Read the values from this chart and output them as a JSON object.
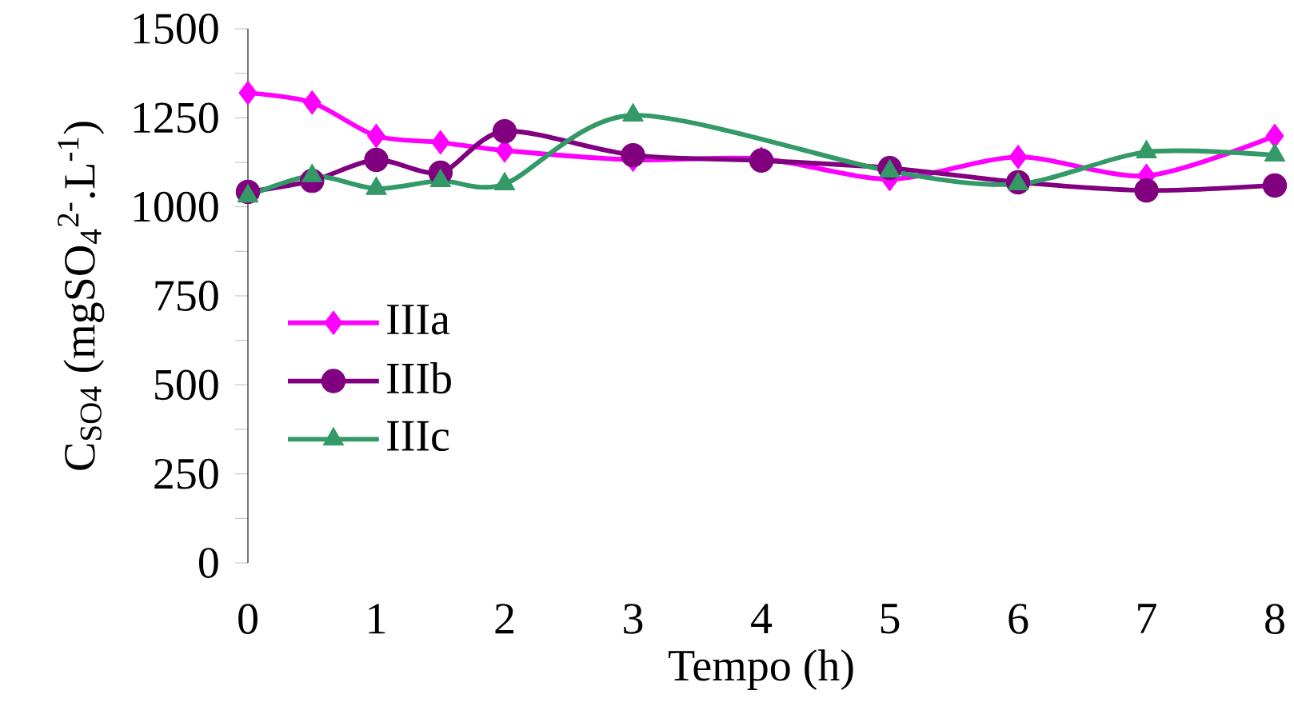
{
  "chart_data": {
    "type": "line",
    "xlabel": "Tempo (h)",
    "ylabel": "C$_{SO4}$ (mgSO$_{4}$$^{2-}$.L$^{-1}$)",
    "xlim": [
      0,
      8
    ],
    "xticks": [
      0,
      1,
      2,
      3,
      4,
      5,
      6,
      7,
      8
    ],
    "ylim": [
      0,
      1500
    ],
    "yticks": [
      0,
      250,
      500,
      750,
      1000,
      1250,
      1500
    ],
    "legend": "left",
    "grid": false,
    "series": [
      {
        "name": "IIIa",
        "color": "#ff00ff",
        "marker": "diamond",
        "x": [
          0,
          0.5,
          1,
          1.5,
          2,
          3,
          4,
          5,
          6,
          7,
          8
        ],
        "values": [
          1320,
          1293,
          1199,
          1181,
          1158,
          1132,
          1135,
          1078,
          1140,
          1087,
          1199
        ]
      },
      {
        "name": "IIIb",
        "color": "#800080",
        "marker": "circle",
        "x": [
          0,
          0.5,
          1,
          1.5,
          2,
          3,
          4,
          5,
          6,
          7,
          8
        ],
        "values": [
          1042,
          1073,
          1132,
          1096,
          1212,
          1145,
          1130,
          1109,
          1069,
          1046,
          1060
        ]
      },
      {
        "name": "IIIc",
        "color": "#339966",
        "marker": "triangle",
        "x": [
          0,
          0.5,
          1,
          1.5,
          2,
          3,
          5,
          6,
          7,
          8
        ],
        "values": [
          1030,
          1087,
          1051,
          1073,
          1064,
          1257,
          1100,
          1064,
          1154,
          1145
        ]
      }
    ]
  }
}
